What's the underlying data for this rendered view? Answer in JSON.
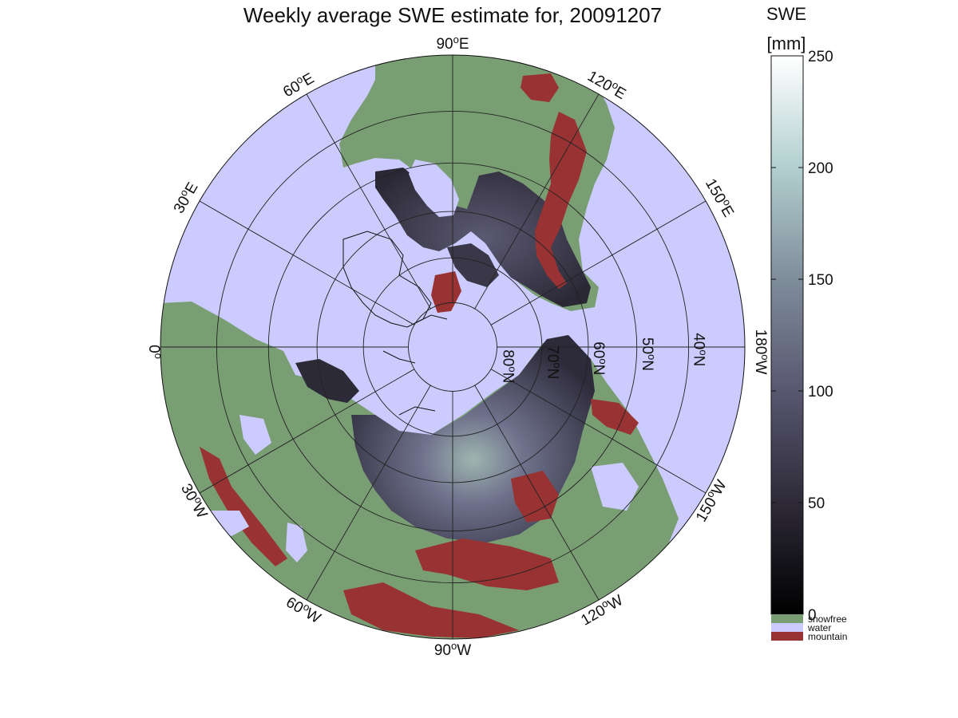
{
  "title": "Weekly average SWE estimate for, 20091207",
  "map": {
    "projection": "north polar stereographic",
    "colors": {
      "water": "#cccbff",
      "snowfree": "#7a9e74",
      "mountain": "#993333",
      "grid": "#222222",
      "coast": "#111111"
    },
    "longitude_labels": [
      {
        "id": "lon-90w",
        "lon": -90,
        "base": "90",
        "sup": "o",
        "suffix": "W"
      },
      {
        "id": "lon-60w",
        "lon": -60,
        "base": "60",
        "sup": "o",
        "suffix": "W"
      },
      {
        "id": "lon-120w",
        "lon": -120,
        "base": "120",
        "sup": "o",
        "suffix": "W"
      },
      {
        "id": "lon-30w",
        "lon": -30,
        "base": "30",
        "sup": "o",
        "suffix": "W"
      },
      {
        "id": "lon-150w",
        "lon": -150,
        "base": "150",
        "sup": "o",
        "suffix": "W"
      },
      {
        "id": "lon-0",
        "lon": 0,
        "base": "0",
        "sup": "o",
        "suffix": ""
      },
      {
        "id": "lon-180w",
        "lon": 180,
        "base": "180",
        "sup": "o",
        "suffix": "W"
      },
      {
        "id": "lon-30e",
        "lon": 30,
        "base": "30",
        "sup": "o",
        "suffix": "E"
      },
      {
        "id": "lon-150e",
        "lon": 150,
        "base": "150",
        "sup": "o",
        "suffix": "E"
      },
      {
        "id": "lon-60e",
        "lon": 60,
        "base": "60",
        "sup": "o",
        "suffix": "E"
      },
      {
        "id": "lon-120e",
        "lon": 120,
        "base": "120",
        "sup": "o",
        "suffix": "E"
      },
      {
        "id": "lon-90e",
        "lon": 90,
        "base": "90",
        "sup": "o",
        "suffix": "E"
      }
    ],
    "latitude_labels": [
      {
        "id": "lat-80n",
        "lat": 80,
        "base": "80",
        "sup": "o",
        "suffix": "N"
      },
      {
        "id": "lat-70n",
        "lat": 70,
        "base": "70",
        "sup": "o",
        "suffix": "N"
      },
      {
        "id": "lat-60n",
        "lat": 60,
        "base": "60",
        "sup": "o",
        "suffix": "N"
      },
      {
        "id": "lat-50n",
        "lat": 50,
        "base": "50",
        "sup": "o",
        "suffix": "N"
      },
      {
        "id": "lat-40n",
        "lat": 40,
        "base": "40",
        "sup": "o",
        "suffix": "N"
      }
    ]
  },
  "colorbar": {
    "title_line1": "SWE",
    "title_line2": "[mm]",
    "min": 0,
    "max": 250,
    "ticks": [
      0,
      50,
      100,
      150,
      200,
      250
    ],
    "tick_labels": [
      "0",
      "50",
      "100",
      "150",
      "200",
      "250"
    ],
    "gradient": [
      "#000000",
      "#2e2a38",
      "#585770",
      "#7f8d9b",
      "#b2cfcf",
      "#ffffff"
    ],
    "legend": [
      {
        "id": "snowfree",
        "label": "snowfree",
        "color": "#7a9e74"
      },
      {
        "id": "water",
        "label": "water",
        "color": "#cccbff"
      },
      {
        "id": "mountain",
        "label": "mountain",
        "color": "#993333"
      }
    ]
  }
}
